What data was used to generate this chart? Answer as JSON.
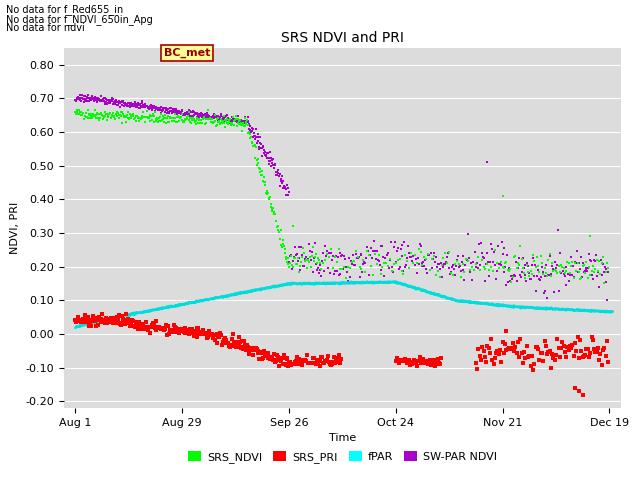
{
  "title": "SRS NDVI and PRI",
  "ylabel": "NDVI, PRI",
  "xlabel": "Time",
  "ylim": [
    -0.22,
    0.85
  ],
  "yticks": [
    -0.2,
    -0.1,
    0.0,
    0.1,
    0.2,
    0.3,
    0.4,
    0.5,
    0.6,
    0.7,
    0.8
  ],
  "bg_color": "#dcdcdc",
  "text_lines": [
    "No data for f_Red655_in",
    "No data for f_NDVI_650in_Apg",
    "No data for ndvi"
  ],
  "annotation_box": "BC_met",
  "legend_labels": [
    "SRS_NDVI",
    "SRS_PRI",
    "fPAR",
    "SW-PAR NDVI"
  ],
  "legend_colors": [
    "#00ff00",
    "#ff0000",
    "#00ffff",
    "#9900cc"
  ],
  "xtick_labels": [
    "Aug 1",
    "Aug 29",
    "Sep 26",
    "Oct 24",
    "Nov 21",
    "Dec 19"
  ],
  "xtick_positions": [
    0,
    28,
    56,
    84,
    112,
    140
  ],
  "total_days": 141
}
